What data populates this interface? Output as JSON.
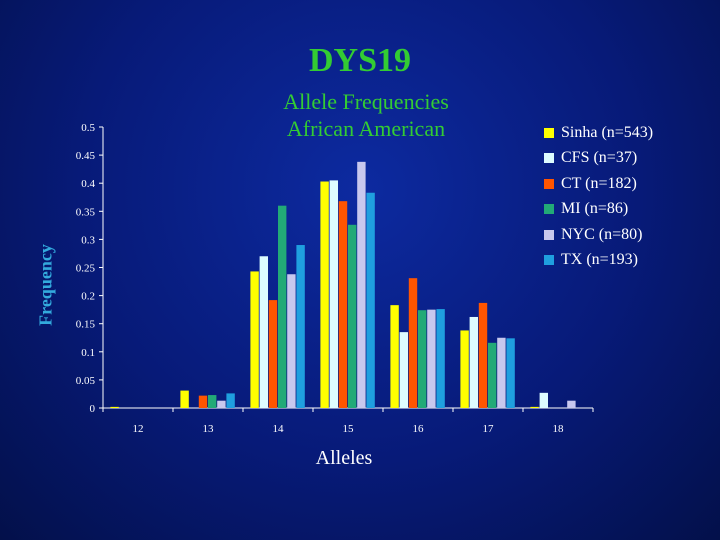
{
  "chart_data": {
    "type": "bar",
    "title": "DYS19",
    "subtitle_lines": [
      "Allele Frequencies",
      "African American"
    ],
    "xlabel": "Alleles",
    "ylabel": "Frequency",
    "categories": [
      "12",
      "13",
      "14",
      "15",
      "16",
      "17",
      "18"
    ],
    "ylim": [
      0,
      0.5
    ],
    "y_ticks": [
      "0",
      "0.05",
      "0.1",
      "0.15",
      "0.2",
      "0.25",
      "0.3",
      "0.35",
      "0.4",
      "0.45",
      "0.5"
    ],
    "grid": false,
    "legend_position": "right",
    "series": [
      {
        "name": "Sinha (n=543)",
        "color": "#ffff00",
        "values": [
          0.002,
          0.031,
          0.243,
          0.403,
          0.183,
          0.138,
          0.002
        ]
      },
      {
        "name": "CFS (n=37)",
        "color": "#ddfcff",
        "values": [
          0,
          0,
          0.27,
          0.405,
          0.135,
          0.162,
          0.027
        ]
      },
      {
        "name": "CT (n=182)",
        "color": "#ff5500",
        "values": [
          0,
          0.022,
          0.192,
          0.368,
          0.231,
          0.187,
          0
        ]
      },
      {
        "name": "MI (n=86)",
        "color": "#22aa77",
        "values": [
          0,
          0.023,
          0.36,
          0.326,
          0.174,
          0.116,
          0
        ]
      },
      {
        "name": "NYC (n=80)",
        "color": "#c8c8ee",
        "values": [
          0,
          0.013,
          0.238,
          0.438,
          0.175,
          0.125,
          0.013
        ]
      },
      {
        "name": "TX (n=193)",
        "color": "#1f9fdf",
        "values": [
          0,
          0.026,
          0.29,
          0.383,
          0.176,
          0.124,
          0
        ]
      }
    ]
  }
}
